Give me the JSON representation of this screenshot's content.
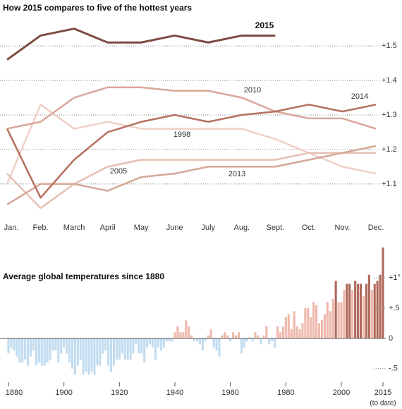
{
  "chart_data": [
    {
      "type": "line",
      "title": "How 2015 compares to five of the hottest years",
      "categories": [
        "Jan.",
        "Feb.",
        "March",
        "April",
        "May",
        "June",
        "July",
        "Aug.",
        "Sept.",
        "Oct.",
        "Nov.",
        "Dec."
      ],
      "series": [
        {
          "name": "1998",
          "color": "#efd0c8",
          "values": [
            1.1,
            1.33,
            1.26,
            1.28,
            1.26,
            1.26,
            1.26,
            1.26,
            1.23,
            1.19,
            1.15,
            1.13
          ]
        },
        {
          "name": "2005",
          "color": "#e6bfb3",
          "values": [
            1.13,
            1.03,
            1.1,
            1.15,
            1.17,
            1.17,
            1.17,
            1.17,
            1.17,
            1.19,
            1.19,
            1.19
          ]
        },
        {
          "name": "2013",
          "color": "#d6a797",
          "values": [
            1.04,
            1.1,
            1.1,
            1.08,
            1.12,
            1.13,
            1.15,
            1.15,
            1.15,
            1.17,
            1.19,
            1.21
          ]
        },
        {
          "name": "2010",
          "color": "#d9a699",
          "values": [
            1.26,
            1.28,
            1.35,
            1.38,
            1.38,
            1.37,
            1.37,
            1.35,
            1.31,
            1.29,
            1.29,
            1.26
          ]
        },
        {
          "name": "2014",
          "color": "#b5705f",
          "values": [
            1.26,
            1.06,
            1.17,
            1.25,
            1.28,
            1.3,
            1.28,
            1.3,
            1.31,
            1.33,
            1.31,
            1.33
          ]
        },
        {
          "name": "2015",
          "color": "#7d4c42",
          "values": [
            1.46,
            1.53,
            1.55,
            1.51,
            1.51,
            1.53,
            1.51,
            1.53,
            1.53,
            null,
            null,
            null
          ]
        }
      ],
      "ylim": [
        1.02,
        1.58
      ],
      "yticks": [
        {
          "value": 1.1,
          "label": "+1.1"
        },
        {
          "value": 1.2,
          "label": "+1.2"
        },
        {
          "value": 1.3,
          "label": "+1.3"
        },
        {
          "value": 1.4,
          "label": "+1.4"
        },
        {
          "value": 1.5,
          "label": "+1.5"
        }
      ],
      "grid": true
    },
    {
      "type": "bar",
      "title": "Average global temperatures since 1880",
      "x": [
        1880,
        1881,
        1882,
        1883,
        1884,
        1885,
        1886,
        1887,
        1888,
        1889,
        1890,
        1891,
        1892,
        1893,
        1894,
        1895,
        1896,
        1897,
        1898,
        1899,
        1900,
        1901,
        1902,
        1903,
        1904,
        1905,
        1906,
        1907,
        1908,
        1909,
        1910,
        1911,
        1912,
        1913,
        1914,
        1915,
        1916,
        1917,
        1918,
        1919,
        1920,
        1921,
        1922,
        1923,
        1924,
        1925,
        1926,
        1927,
        1928,
        1929,
        1930,
        1931,
        1932,
        1933,
        1934,
        1935,
        1936,
        1937,
        1938,
        1939,
        1940,
        1941,
        1942,
        1943,
        1944,
        1945,
        1946,
        1947,
        1948,
        1949,
        1950,
        1951,
        1952,
        1953,
        1954,
        1955,
        1956,
        1957,
        1958,
        1959,
        1960,
        1961,
        1962,
        1963,
        1964,
        1965,
        1966,
        1967,
        1968,
        1969,
        1970,
        1971,
        1972,
        1973,
        1974,
        1975,
        1976,
        1977,
        1978,
        1979,
        1980,
        1981,
        1982,
        1983,
        1984,
        1985,
        1986,
        1987,
        1988,
        1989,
        1990,
        1991,
        1992,
        1993,
        1994,
        1995,
        1996,
        1997,
        1998,
        1999,
        2000,
        2001,
        2002,
        2003,
        2004,
        2005,
        2006,
        2007,
        2008,
        2009,
        2010,
        2011,
        2012,
        2013,
        2014,
        2015
      ],
      "values": [
        -0.25,
        -0.15,
        -0.2,
        -0.3,
        -0.4,
        -0.4,
        -0.35,
        -0.45,
        -0.3,
        -0.2,
        -0.45,
        -0.4,
        -0.45,
        -0.45,
        -0.4,
        -0.35,
        -0.2,
        -0.2,
        -0.4,
        -0.25,
        -0.15,
        -0.25,
        -0.4,
        -0.5,
        -0.6,
        -0.45,
        -0.35,
        -0.6,
        -0.55,
        -0.6,
        -0.55,
        -0.6,
        -0.45,
        -0.45,
        -0.25,
        -0.2,
        -0.45,
        -0.55,
        -0.45,
        -0.35,
        -0.35,
        -0.25,
        -0.35,
        -0.35,
        -0.35,
        -0.25,
        -0.1,
        -0.25,
        -0.25,
        -0.4,
        -0.15,
        -0.1,
        -0.15,
        -0.35,
        -0.15,
        -0.2,
        -0.15,
        -0.05,
        -0.05,
        -0.05,
        0.1,
        0.2,
        0.1,
        0.1,
        0.3,
        0.2,
        0.05,
        -0.05,
        -0.05,
        -0.1,
        -0.2,
        -0.05,
        0.05,
        0.15,
        -0.15,
        -0.2,
        -0.3,
        0.05,
        0.1,
        0.05,
        -0.05,
        0.1,
        0.05,
        0.1,
        -0.25,
        -0.15,
        -0.05,
        0.02,
        -0.05,
        0.1,
        0.05,
        -0.1,
        0.05,
        0.2,
        -0.1,
        -0.05,
        -0.15,
        0.2,
        0.1,
        0.2,
        0.35,
        0.4,
        0.15,
        0.45,
        0.2,
        0.15,
        0.25,
        0.5,
        0.5,
        0.35,
        0.6,
        0.55,
        0.25,
        0.3,
        0.4,
        0.6,
        0.45,
        0.65,
        0.95,
        0.6,
        0.6,
        0.8,
        0.9,
        0.9,
        0.8,
        0.95,
        0.9,
        0.9,
        0.7,
        0.9,
        1.05,
        0.8,
        0.9,
        0.95,
        1.05,
        1.5
      ],
      "xlim": [
        1880,
        2015
      ],
      "xticks": [
        1880,
        1900,
        1920,
        1940,
        1960,
        1980,
        2000,
        2015
      ],
      "xtick_note": "(to date)",
      "ylim": [
        -0.84,
        1.57
      ],
      "yticks": [
        {
          "value": -0.5,
          "label": "-.5"
        },
        0,
        {
          "value": 0.5,
          "label": "+.5"
        },
        {
          "value": 1,
          "label": "+1°"
        }
      ],
      "colors": {
        "negative": "#c2dcf0",
        "positive": "#efb9ad",
        "high": "#b0695c"
      }
    }
  ]
}
